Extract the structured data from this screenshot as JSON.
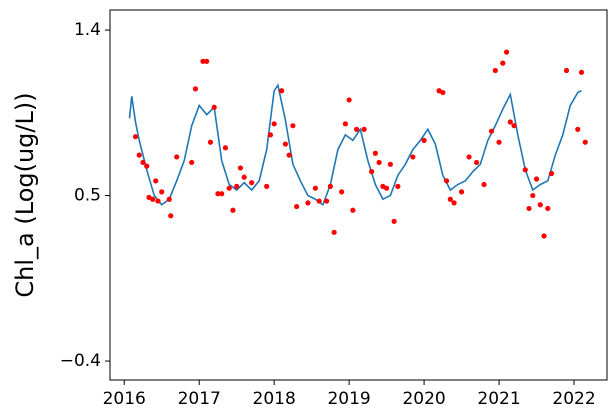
{
  "chart_data": {
    "type": "line",
    "y_label": "Chl_a (Log(ug/L))",
    "xlim": [
      2015.81,
      2022.44
    ],
    "ylim": [
      -0.503,
      1.509
    ],
    "xticks": [
      2016,
      2017,
      2018,
      2019,
      2020,
      2021,
      2022
    ],
    "yticks": [
      {
        "value": -0.4,
        "label": "−0.4"
      },
      0.5,
      1.4
    ],
    "series": [
      {
        "type": "line",
        "color": "#1f77b4",
        "x": [
          2016.07,
          2016.1,
          2016.15,
          2016.2,
          2016.3,
          2016.4,
          2016.5,
          2016.6,
          2016.7,
          2016.8,
          2016.9,
          2017.0,
          2017.1,
          2017.2,
          2017.3,
          2017.4,
          2017.5,
          2017.6,
          2017.7,
          2017.8,
          2017.9,
          2018.0,
          2018.05,
          2018.15,
          2018.25,
          2018.35,
          2018.45,
          2018.55,
          2018.65,
          2018.75,
          2018.85,
          2018.95,
          2019.05,
          2019.15,
          2019.25,
          2019.35,
          2019.45,
          2019.55,
          2019.65,
          2019.75,
          2019.85,
          2019.95,
          2020.05,
          2020.15,
          2020.25,
          2020.35,
          2020.45,
          2020.55,
          2020.65,
          2020.75,
          2020.85,
          2020.95,
          2021.05,
          2021.15,
          2021.25,
          2021.35,
          2021.45,
          2021.55,
          2021.65,
          2021.75,
          2021.85,
          2021.95,
          2022.05,
          2022.1
        ],
        "values": [
          0.92,
          1.04,
          0.9,
          0.8,
          0.64,
          0.5,
          0.45,
          0.48,
          0.58,
          0.69,
          0.88,
          0.99,
          0.94,
          0.98,
          0.69,
          0.56,
          0.53,
          0.57,
          0.53,
          0.58,
          0.75,
          1.07,
          1.1,
          0.91,
          0.67,
          0.58,
          0.5,
          0.48,
          0.45,
          0.56,
          0.75,
          0.83,
          0.8,
          0.86,
          0.69,
          0.56,
          0.48,
          0.5,
          0.61,
          0.67,
          0.75,
          0.8,
          0.86,
          0.78,
          0.61,
          0.53,
          0.56,
          0.58,
          0.63,
          0.67,
          0.8,
          0.88,
          0.97,
          1.05,
          0.83,
          0.64,
          0.53,
          0.56,
          0.58,
          0.72,
          0.83,
          0.99,
          1.06,
          1.07
        ]
      },
      {
        "type": "scatter",
        "color": "#ff0000",
        "x": [
          2016.15,
          2016.2,
          2016.25,
          2016.3,
          2016.33,
          2016.38,
          2016.42,
          2016.45,
          2016.5,
          2016.6,
          2016.62,
          2016.7,
          2016.9,
          2016.95,
          2017.05,
          2017.1,
          2017.15,
          2017.2,
          2017.25,
          2017.3,
          2017.35,
          2017.4,
          2017.45,
          2017.5,
          2017.55,
          2017.6,
          2017.7,
          2017.9,
          2017.95,
          2018.0,
          2018.1,
          2018.15,
          2018.2,
          2018.25,
          2018.3,
          2018.45,
          2018.55,
          2018.6,
          2018.7,
          2018.75,
          2018.8,
          2018.9,
          2018.95,
          2019.0,
          2019.05,
          2019.1,
          2019.2,
          2019.3,
          2019.35,
          2019.4,
          2019.45,
          2019.5,
          2019.55,
          2019.6,
          2019.65,
          2019.85,
          2020.0,
          2020.2,
          2020.25,
          2020.3,
          2020.35,
          2020.4,
          2020.5,
          2020.6,
          2020.7,
          2020.8,
          2020.9,
          2020.95,
          2021.0,
          2021.05,
          2021.1,
          2021.15,
          2021.2,
          2021.35,
          2021.4,
          2021.45,
          2021.5,
          2021.55,
          2021.6,
          2021.65,
          2021.7,
          2021.9,
          2022.05,
          2022.1,
          2022.15
        ],
        "values": [
          0.82,
          0.72,
          0.68,
          0.66,
          0.49,
          0.48,
          0.58,
          0.47,
          0.52,
          0.48,
          0.39,
          0.71,
          0.68,
          1.08,
          1.23,
          1.23,
          0.79,
          0.98,
          0.51,
          0.51,
          0.76,
          0.54,
          0.42,
          0.55,
          0.65,
          0.6,
          0.57,
          0.55,
          0.83,
          0.89,
          1.07,
          0.78,
          0.72,
          0.88,
          0.44,
          0.46,
          0.54,
          0.47,
          0.47,
          0.55,
          0.3,
          0.52,
          0.89,
          1.02,
          0.42,
          0.86,
          0.86,
          0.63,
          0.73,
          0.68,
          0.55,
          0.54,
          0.67,
          0.36,
          0.55,
          0.71,
          0.8,
          1.07,
          1.06,
          0.58,
          0.48,
          0.46,
          0.52,
          0.71,
          0.68,
          0.56,
          0.85,
          1.18,
          0.79,
          1.22,
          1.28,
          0.9,
          0.88,
          0.64,
          0.43,
          0.5,
          0.59,
          0.45,
          0.28,
          0.43,
          0.62,
          1.18,
          0.86,
          1.17,
          0.79
        ]
      }
    ]
  }
}
